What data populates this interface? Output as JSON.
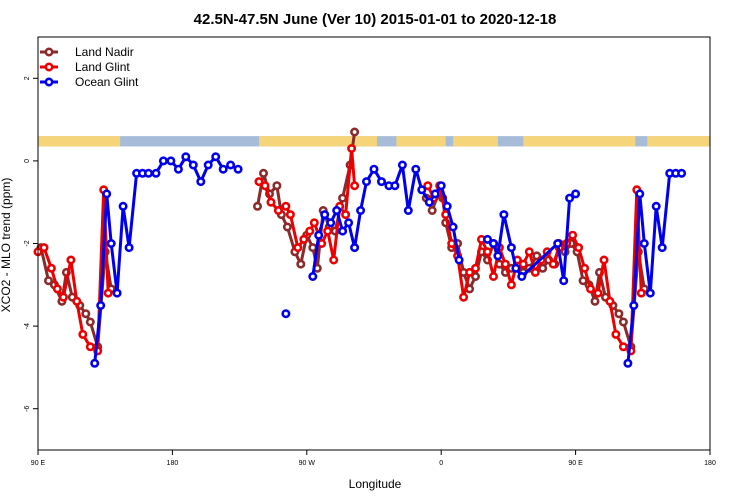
{
  "chart_data": {
    "type": "line",
    "title": "42.5N-47.5N June (Ver 10)   2015-01-01 to 2020-12-18",
    "xlabel": "Longitude",
    "ylabel": "XCO2 - MLO trend (ppm)",
    "xlim": [
      90,
      540
    ],
    "ylim": [
      -7,
      3
    ],
    "x_ticks": [
      {
        "value": 90,
        "label": "90 E"
      },
      {
        "value": 180,
        "label": "180"
      },
      {
        "value": 270,
        "label": "90 W"
      },
      {
        "value": 360,
        "label": "0"
      },
      {
        "value": 450,
        "label": "90 E"
      },
      {
        "value": 540,
        "label": "180"
      }
    ],
    "y_ticks": [
      {
        "value": -6,
        "label": "-6"
      },
      {
        "value": -4,
        "label": "-4"
      },
      {
        "value": -2,
        "label": "-2"
      },
      {
        "value": 0,
        "label": "0"
      },
      {
        "value": 2,
        "label": "2"
      }
    ],
    "legend_position": "top-left",
    "land_ocean_strip": {
      "y_range": [
        0.35,
        0.6
      ],
      "land_color": "#f6d47a",
      "ocean_color": "#a6bcd9",
      "land_segments": [
        [
          90,
          145
        ],
        [
          238,
          317
        ],
        [
          330,
          363
        ],
        [
          368,
          398
        ],
        [
          415,
          490
        ],
        [
          498,
          540
        ]
      ]
    },
    "series": [
      {
        "name": "Land Nadir",
        "color": "#8b2a2a",
        "segments": [
          [
            [
              92,
              -2.1
            ],
            [
              97,
              -2.9
            ],
            [
              101,
              -3.0
            ],
            [
              106,
              -3.4
            ],
            [
              109,
              -2.7
            ],
            [
              113,
              -3.3
            ],
            [
              118,
              -3.5
            ],
            [
              122,
              -3.7
            ],
            [
              125,
              -3.9
            ],
            [
              130,
              -4.5
            ],
            [
              135,
              -2.2
            ],
            [
              139,
              -3.1
            ]
          ],
          [
            [
              237,
              -1.1
            ],
            [
              241,
              -0.3
            ],
            [
              245,
              -0.8
            ],
            [
              250,
              -0.6
            ],
            [
              253,
              -1.3
            ],
            [
              257,
              -1.6
            ],
            [
              262,
              -2.2
            ],
            [
              266,
              -2.5
            ],
            [
              270,
              -1.8
            ],
            [
              274,
              -2.1
            ],
            [
              277,
              -2.6
            ],
            [
              281,
              -1.2
            ],
            [
              285,
              -1.6
            ],
            [
              289,
              -1.7
            ],
            [
              294,
              -0.9
            ],
            [
              299,
              -0.1
            ],
            [
              302,
              0.7
            ]
          ],
          [
            [
              350,
              -0.9
            ],
            [
              354,
              -1.2
            ],
            [
              358,
              -0.8
            ],
            [
              361,
              -0.9
            ],
            [
              363,
              -1.5
            ],
            [
              367,
              -2.1
            ],
            [
              371,
              -2.0
            ],
            [
              375,
              -2.7
            ],
            [
              379,
              -3.1
            ],
            [
              383,
              -2.8
            ],
            [
              387,
              -2.2
            ],
            [
              391,
              -2.4
            ],
            [
              395,
              -2.0
            ],
            [
              399,
              -2.5
            ],
            [
              403,
              -2.7
            ],
            [
              407,
              -2.6
            ],
            [
              411,
              -2.5
            ],
            [
              415,
              -2.7
            ],
            [
              419,
              -2.6
            ],
            [
              424,
              -2.3
            ],
            [
              428,
              -2.6
            ],
            [
              432,
              -2.4
            ],
            [
              436,
              -2.5
            ],
            [
              439,
              -2.0
            ],
            [
              443,
              -2.2
            ],
            [
              447,
              -2.0
            ],
            [
              451,
              -2.2
            ],
            [
              455,
              -2.9
            ],
            [
              459,
              -3.0
            ],
            [
              463,
              -3.4
            ],
            [
              466,
              -2.7
            ],
            [
              470,
              -3.3
            ],
            [
              475,
              -3.5
            ],
            [
              479,
              -3.7
            ],
            [
              482,
              -3.9
            ],
            [
              487,
              -4.5
            ],
            [
              492,
              -2.2
            ],
            [
              496,
              -3.1
            ]
          ]
        ]
      },
      {
        "name": "Land Glint",
        "color": "#ee0000",
        "segments": [
          [
            [
              90,
              -2.2
            ],
            [
              94,
              -2.1
            ],
            [
              99,
              -2.6
            ],
            [
              103,
              -3.1
            ],
            [
              107,
              -3.3
            ],
            [
              112,
              -2.4
            ],
            [
              116,
              -3.4
            ],
            [
              120,
              -4.2
            ],
            [
              125,
              -4.5
            ],
            [
              130,
              -4.6
            ],
            [
              134,
              -0.7
            ],
            [
              137,
              -3.2
            ]
          ],
          [
            [
              238,
              -0.5
            ],
            [
              242,
              -0.6
            ],
            [
              246,
              -1.0
            ],
            [
              251,
              -1.2
            ],
            [
              256,
              -1.1
            ],
            [
              259,
              -1.3
            ],
            [
              264,
              -2.1
            ],
            [
              268,
              -1.9
            ],
            [
              272,
              -1.7
            ],
            [
              275,
              -1.5
            ],
            [
              280,
              -2.0
            ],
            [
              284,
              -1.7
            ],
            [
              288,
              -2.4
            ],
            [
              292,
              -1.1
            ],
            [
              296,
              -1.3
            ],
            [
              300,
              0.3
            ],
            [
              302,
              -0.6
            ]
          ],
          [
            [
              351,
              -0.6
            ],
            [
              355,
              -0.9
            ],
            [
              359,
              -0.6
            ],
            [
              363,
              -1.3
            ],
            [
              367,
              -2.0
            ],
            [
              371,
              -2.3
            ],
            [
              375,
              -3.3
            ],
            [
              379,
              -2.7
            ],
            [
              383,
              -2.6
            ],
            [
              387,
              -1.9
            ],
            [
              391,
              -2.2
            ],
            [
              395,
              -2.8
            ],
            [
              399,
              -2.1
            ],
            [
              403,
              -2.5
            ],
            [
              407,
              -3.0
            ],
            [
              411,
              -2.4
            ],
            [
              415,
              -2.5
            ],
            [
              419,
              -2.2
            ],
            [
              423,
              -2.7
            ],
            [
              427,
              -2.4
            ],
            [
              431,
              -2.2
            ],
            [
              435,
              -2.5
            ],
            [
              439,
              -2.1
            ],
            [
              444,
              -2.0
            ],
            [
              448,
              -1.8
            ],
            [
              452,
              -2.1
            ],
            [
              456,
              -2.6
            ],
            [
              460,
              -3.1
            ],
            [
              465,
              -3.2
            ],
            [
              469,
              -2.4
            ],
            [
              473,
              -3.4
            ],
            [
              477,
              -4.2
            ],
            [
              482,
              -4.5
            ],
            [
              487,
              -4.6
            ],
            [
              491,
              -0.7
            ],
            [
              494,
              -3.2
            ]
          ]
        ]
      },
      {
        "name": "Ocean Glint",
        "color": "#0000ee",
        "segments": [
          [
            [
              128,
              -4.9
            ],
            [
              132,
              -3.5
            ],
            [
              136,
              -0.8
            ],
            [
              139,
              -2.0
            ],
            [
              143,
              -3.2
            ],
            [
              147,
              -1.1
            ],
            [
              151,
              -2.1
            ],
            [
              156,
              -0.3
            ],
            [
              160,
              -0.3
            ],
            [
              164,
              -0.3
            ],
            [
              169,
              -0.3
            ],
            [
              174,
              0.0
            ],
            [
              179,
              0.0
            ],
            [
              184,
              -0.2
            ],
            [
              189,
              0.1
            ],
            [
              194,
              -0.1
            ],
            [
              199,
              -0.5
            ],
            [
              204,
              -0.1
            ],
            [
              209,
              0.1
            ],
            [
              214,
              -0.2
            ],
            [
              219,
              -0.1
            ],
            [
              224,
              -0.2
            ]
          ],
          [
            [
              274,
              -2.8
            ],
            [
              278,
              -1.8
            ],
            [
              282,
              -1.3
            ],
            [
              286,
              -1.5
            ],
            [
              290,
              -1.2
            ],
            [
              294,
              -1.7
            ],
            [
              298,
              -1.5
            ],
            [
              302,
              -2.1
            ],
            [
              306,
              -1.2
            ],
            [
              310,
              -0.5
            ],
            [
              315,
              -0.2
            ],
            [
              320,
              -0.5
            ],
            [
              325,
              -0.6
            ],
            [
              329,
              -0.6
            ],
            [
              334,
              -0.1
            ],
            [
              338,
              -1.2
            ],
            [
              343,
              -0.2
            ],
            [
              347,
              -0.7
            ],
            [
              352,
              -1.0
            ],
            [
              356,
              -0.8
            ],
            [
              360,
              -0.6
            ],
            [
              364,
              -1.1
            ],
            [
              368,
              -1.6
            ],
            [
              372,
              -2.4
            ]
          ],
          [
            [
              391,
              -1.9
            ],
            [
              395,
              -2.0
            ],
            [
              398,
              -2.3
            ],
            [
              402,
              -1.3
            ],
            [
              407,
              -2.1
            ],
            [
              410,
              -2.6
            ],
            [
              414,
              -2.8
            ],
            [
              438,
              -2.0
            ],
            [
              442,
              -2.9
            ],
            [
              446,
              -0.9
            ],
            [
              450,
              -0.8
            ]
          ],
          [
            [
              485,
              -4.9
            ],
            [
              489,
              -3.5
            ],
            [
              493,
              -0.8
            ],
            [
              496,
              -2.0
            ],
            [
              500,
              -3.2
            ],
            [
              504,
              -1.1
            ],
            [
              508,
              -2.1
            ],
            [
              513,
              -0.3
            ],
            [
              517,
              -0.3
            ],
            [
              521,
              -0.3
            ]
          ],
          [
            [
              256,
              -3.7
            ]
          ]
        ]
      }
    ]
  }
}
